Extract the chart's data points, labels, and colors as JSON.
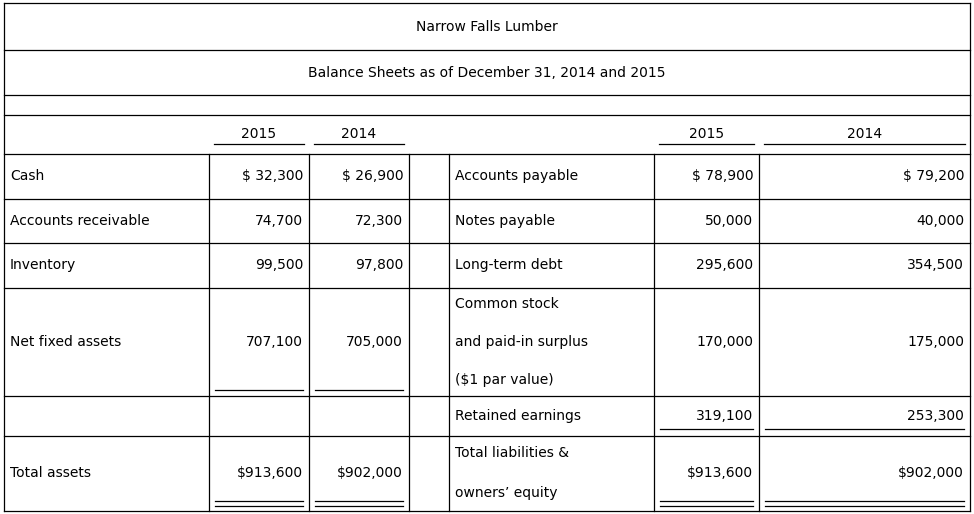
{
  "title1": "Narrow Falls Lumber",
  "title2": "Balance Sheets as of December 31, 2014 and 2015",
  "fig_width": 9.74,
  "fig_height": 5.14,
  "bg_color": "#ffffff",
  "font_size": 10,
  "left_rows": [
    [
      "Cash",
      "$ 32,300",
      "$ 26,900"
    ],
    [
      "Accounts receivable",
      "74,700",
      "72,300"
    ],
    [
      "Inventory",
      "99,500",
      "97,800"
    ],
    [
      "Net fixed assets",
      "707,100",
      "705,000"
    ],
    [
      "",
      "",
      ""
    ],
    [
      "Total assets",
      "$913,600",
      "$902,000"
    ]
  ],
  "right_rows": [
    [
      "Accounts payable",
      "$ 78,900",
      "$ 79,200"
    ],
    [
      "Notes payable",
      "50,000",
      "40,000"
    ],
    [
      "Long-term debt",
      "295,600",
      "354,500"
    ],
    [
      "Common stock\nand paid-in surplus\n($1 par value)",
      "170,000",
      "175,000"
    ],
    [
      "Retained earnings",
      "319,100",
      "253,300"
    ],
    [
      "Total liabilities &\nowners’ equity",
      "$913,600",
      "$902,000"
    ]
  ]
}
